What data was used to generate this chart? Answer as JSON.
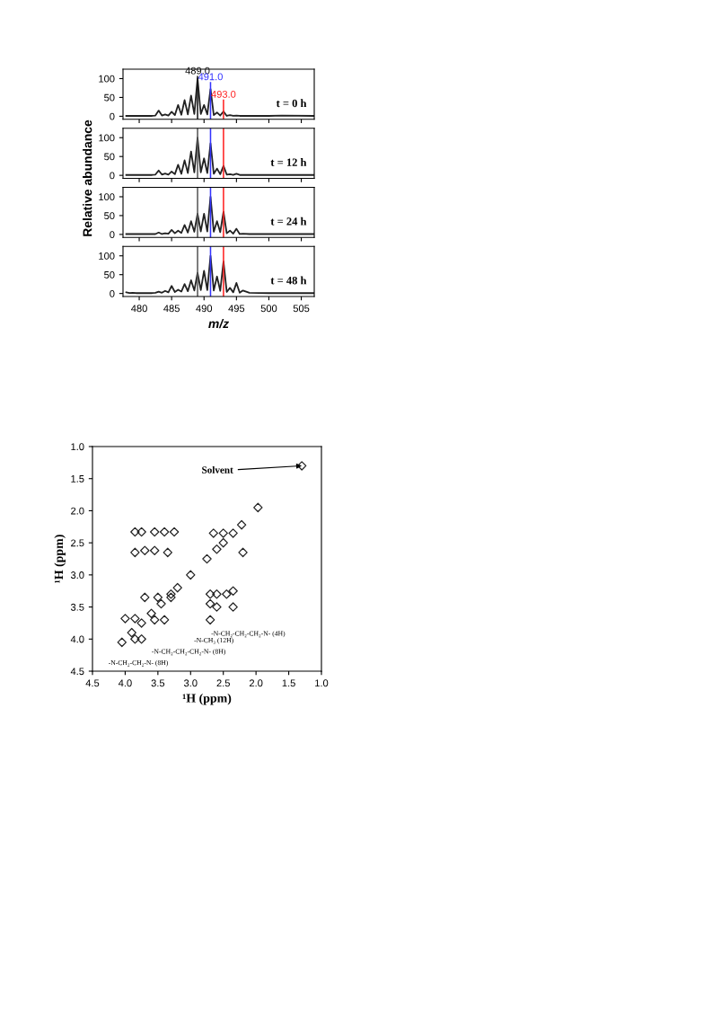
{
  "chart_data": [
    {
      "type": "line",
      "x": [
        478,
        478.5,
        479,
        479.5,
        480,
        481,
        482,
        482.5,
        483,
        483.5,
        484,
        484.5,
        485,
        485.5,
        486,
        486.5,
        487,
        487.5,
        488,
        488.5,
        489,
        489.5,
        490,
        490.5,
        491,
        491.5,
        492,
        492.5,
        493,
        493.5,
        494,
        494.5,
        495,
        495.5,
        496,
        497,
        500,
        502,
        507
      ],
      "series": [
        {
          "color": "#222222",
          "values": [
            1,
            1,
            1,
            1,
            1,
            1,
            1,
            2,
            15,
            2,
            5,
            2,
            12,
            3,
            30,
            4,
            43,
            5,
            55,
            6,
            100,
            6,
            30,
            5,
            72,
            3,
            10,
            2,
            13,
            1,
            3,
            1,
            2,
            1,
            1,
            1,
            1,
            2,
            1
          ]
        }
      ],
      "xlim": [
        477.5,
        507
      ],
      "ylim": [
        -8,
        125
      ],
      "xticks": [
        480,
        485,
        490,
        495,
        500,
        505
      ],
      "yticks": [
        0,
        50,
        100
      ],
      "tick_labels": "y",
      "annotations": [
        "t = 0 h"
      ],
      "ref_lines": [
        {
          "axis": "x",
          "value": 489,
          "label": "489.0",
          "color": "#111111"
        },
        {
          "axis": "x",
          "value": 491,
          "label": "491.0",
          "color": "#3333ff"
        },
        {
          "axis": "x",
          "value": 493,
          "label": "493.0",
          "color": "#ff2020"
        }
      ]
    },
    {
      "type": "line",
      "x": [
        478,
        478.5,
        479,
        479.5,
        480,
        481,
        482,
        482.5,
        483,
        483.5,
        484,
        484.5,
        485,
        485.5,
        486,
        486.5,
        487,
        487.5,
        488,
        488.5,
        489,
        489.5,
        490,
        490.5,
        491,
        491.5,
        492,
        492.5,
        493,
        493.5,
        494,
        494.5,
        495,
        495.5,
        496,
        497,
        500,
        502,
        507
      ],
      "series": [
        {
          "color": "#222222",
          "values": [
            1,
            1,
            1,
            1,
            1,
            1,
            1,
            2,
            13,
            2,
            5,
            2,
            10,
            3,
            28,
            4,
            40,
            6,
            63,
            8,
            100,
            8,
            45,
            6,
            85,
            4,
            18,
            3,
            25,
            2,
            3,
            1,
            4,
            1,
            1,
            1,
            1,
            1,
            1
          ]
        }
      ],
      "ylabel": "Relative abundance",
      "xlim": [
        477.5,
        507
      ],
      "ylim": [
        -8,
        125
      ],
      "xticks": [
        480,
        485,
        490,
        495,
        500,
        505
      ],
      "yticks": [
        0,
        50,
        100
      ],
      "tick_labels": "y",
      "annotations": [
        "t = 12 h"
      ],
      "ref_lines": [
        {
          "axis": "x",
          "value": 489,
          "color": "#555555"
        },
        {
          "axis": "x",
          "value": 491,
          "color": "#3333ff"
        },
        {
          "axis": "x",
          "value": 493,
          "color": "#ff2020"
        }
      ]
    },
    {
      "type": "line",
      "x": [
        478,
        478.5,
        479,
        479.5,
        480,
        481,
        482,
        482.5,
        483,
        483.5,
        484,
        484.5,
        485,
        485.5,
        486,
        486.5,
        487,
        487.5,
        488,
        488.5,
        489,
        489.5,
        490,
        490.5,
        491,
        491.5,
        492,
        492.5,
        493,
        493.5,
        494,
        494.5,
        495,
        495.5,
        496,
        497,
        500,
        502,
        507
      ],
      "series": [
        {
          "color": "#222222",
          "values": [
            1,
            1,
            1,
            1,
            1,
            1,
            1,
            1,
            5,
            1,
            3,
            2,
            12,
            3,
            10,
            4,
            25,
            5,
            35,
            7,
            55,
            8,
            55,
            8,
            100,
            7,
            35,
            6,
            60,
            3,
            10,
            2,
            15,
            1,
            2,
            1,
            1,
            1,
            1
          ]
        }
      ],
      "xlim": [
        477.5,
        507
      ],
      "ylim": [
        -8,
        125
      ],
      "xticks": [
        480,
        485,
        490,
        495,
        500,
        505
      ],
      "yticks": [
        0,
        50,
        100
      ],
      "tick_labels": "y",
      "annotations": [
        "t = 24 h"
      ],
      "ref_lines": [
        {
          "axis": "x",
          "value": 489,
          "color": "#555555"
        },
        {
          "axis": "x",
          "value": 491,
          "color": "#3333ff"
        },
        {
          "axis": "x",
          "value": 493,
          "color": "#ff2020"
        }
      ]
    },
    {
      "type": "line",
      "x": [
        478,
        478.5,
        479,
        479.5,
        480,
        481,
        482,
        482.5,
        483,
        483.5,
        484,
        484.5,
        485,
        485.5,
        486,
        486.5,
        487,
        487.5,
        488,
        488.5,
        489,
        489.5,
        490,
        490.5,
        491,
        491.5,
        492,
        492.5,
        493,
        493.5,
        494,
        494.5,
        495,
        495.5,
        496,
        497,
        500,
        502,
        507
      ],
      "series": [
        {
          "color": "#222222",
          "values": [
            3,
            1,
            2,
            1,
            1,
            1,
            1,
            2,
            5,
            2,
            7,
            3,
            20,
            4,
            10,
            5,
            25,
            6,
            35,
            8,
            55,
            9,
            60,
            9,
            100,
            8,
            45,
            7,
            85,
            4,
            15,
            3,
            28,
            2,
            8,
            2,
            1,
            1,
            1
          ]
        }
      ],
      "xlabel": "m/z",
      "xlim": [
        477.5,
        507
      ],
      "ylim": [
        -8,
        125
      ],
      "xticks": [
        480,
        485,
        490,
        495,
        500,
        505
      ],
      "yticks": [
        0,
        50,
        100
      ],
      "annotations": [
        "t = 48 h"
      ],
      "ref_lines": [
        {
          "axis": "x",
          "value": 489,
          "color": "#555555"
        },
        {
          "axis": "x",
          "value": 491,
          "color": "#3333ff"
        },
        {
          "axis": "x",
          "value": 493,
          "color": "#ff2020"
        }
      ]
    },
    {
      "type": "scatter",
      "marker": "diamond",
      "x": [
        4.05,
        3.9,
        3.75,
        3.6,
        3.45,
        3.3,
        3.2,
        3.0,
        2.75,
        2.6,
        2.5,
        2.35,
        2.22,
        1.97,
        1.3,
        3.85,
        3.75,
        3.55,
        3.4,
        3.25,
        3.85,
        3.7,
        3.55,
        3.35,
        4.0,
        3.85,
        3.55,
        3.4,
        3.7,
        3.5,
        3.3,
        3.85,
        3.75,
        2.7,
        2.6,
        2.45,
        2.35,
        2.7,
        2.6,
        2.35,
        2.7,
        2.5,
        2.2,
        2.65
      ],
      "series": [
        {
          "color": "#222222",
          "values": [
            4.05,
            3.9,
            3.75,
            3.6,
            3.45,
            3.3,
            3.2,
            3.0,
            2.75,
            2.6,
            2.5,
            2.35,
            2.22,
            1.95,
            1.3,
            2.33,
            2.33,
            2.33,
            2.33,
            2.33,
            2.65,
            2.62,
            2.62,
            2.65,
            3.68,
            3.68,
            3.7,
            3.7,
            3.35,
            3.35,
            3.35,
            4.0,
            4.0,
            3.3,
            3.3,
            3.3,
            3.25,
            3.45,
            3.5,
            3.5,
            3.7,
            2.35,
            2.65,
            2.35
          ]
        }
      ],
      "xlabel": "¹H (ppm)",
      "ylabel": "¹H (ppm)",
      "xlim": [
        4.5,
        1.0
      ],
      "ylim": [
        4.5,
        1.0
      ],
      "xticks": [
        {
          "value": 4.5,
          "label": "4.5"
        },
        {
          "value": 4,
          "label": "4.0"
        },
        {
          "value": 3.5,
          "label": "3.5"
        },
        {
          "value": 3,
          "label": "3.0"
        },
        {
          "value": 2.5,
          "label": "2.5"
        },
        {
          "value": 2,
          "label": "2.0"
        },
        {
          "value": 1.5,
          "label": "1.5"
        },
        {
          "value": 1,
          "label": "1.0"
        }
      ],
      "yticks": [
        {
          "value": 4.5,
          "label": "4.5"
        },
        {
          "value": 4,
          "label": "4.0"
        },
        {
          "value": 3.5,
          "label": "3.5"
        },
        {
          "value": 3,
          "label": "3.0"
        },
        {
          "value": 2.5,
          "label": "2.5"
        },
        {
          "value": 2,
          "label": "2.0"
        },
        {
          "value": 1.5,
          "label": "1.5"
        },
        {
          "value": 1,
          "label": "1.0"
        }
      ],
      "annotations": [
        {
          "text": "Solvent",
          "x": 1.3,
          "y": 1.3
        },
        "-N-CH₃ (12H)",
        "-N-CH₂-CH₂-CH₂-N- (4H)",
        "-N-CH₂-CH₂-CH₂-N- (8H)",
        "-N-CH₂-CH₂-N- (8H)"
      ]
    }
  ]
}
